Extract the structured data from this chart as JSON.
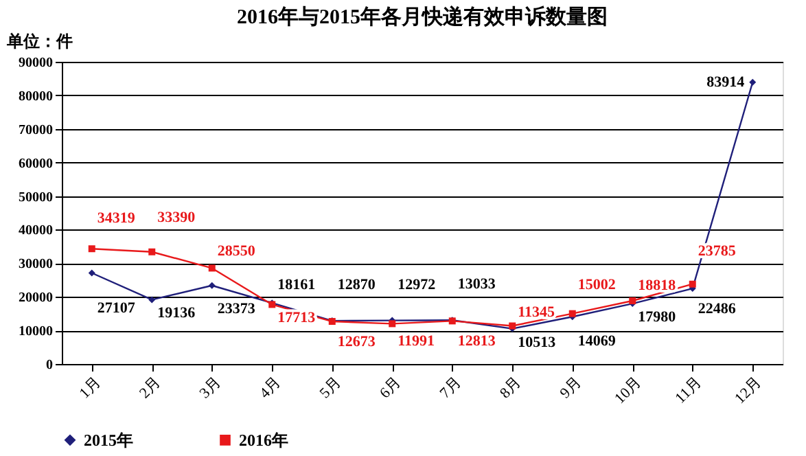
{
  "chart_data": {
    "type": "line",
    "title": "2016年与2015年各月快递有效申诉数量图",
    "annotations": [
      "单位：件"
    ],
    "categories": [
      "1月",
      "2月",
      "3月",
      "4月",
      "5月",
      "6月",
      "7月",
      "8月",
      "9月",
      "10月",
      "11月",
      "12月"
    ],
    "series": [
      {
        "name": "2015年",
        "color": "#1f1f7a",
        "marker": "diamond",
        "values": [
          27107,
          19136,
          23373,
          18161,
          12870,
          12972,
          13033,
          10513,
          14069,
          17980,
          22486,
          83914
        ]
      },
      {
        "name": "2016年",
        "color": "#e8191b",
        "marker": "square",
        "values": [
          34319,
          33390,
          28550,
          17713,
          12673,
          11991,
          12813,
          11345,
          15002,
          18818,
          23785,
          null
        ]
      }
    ],
    "ylim": [
      0,
      90000
    ],
    "yticks": [
      0,
      10000,
      20000,
      30000,
      40000,
      50000,
      60000,
      70000,
      80000,
      90000
    ],
    "grid": "y",
    "legend": "bottom",
    "data_labels": true
  }
}
